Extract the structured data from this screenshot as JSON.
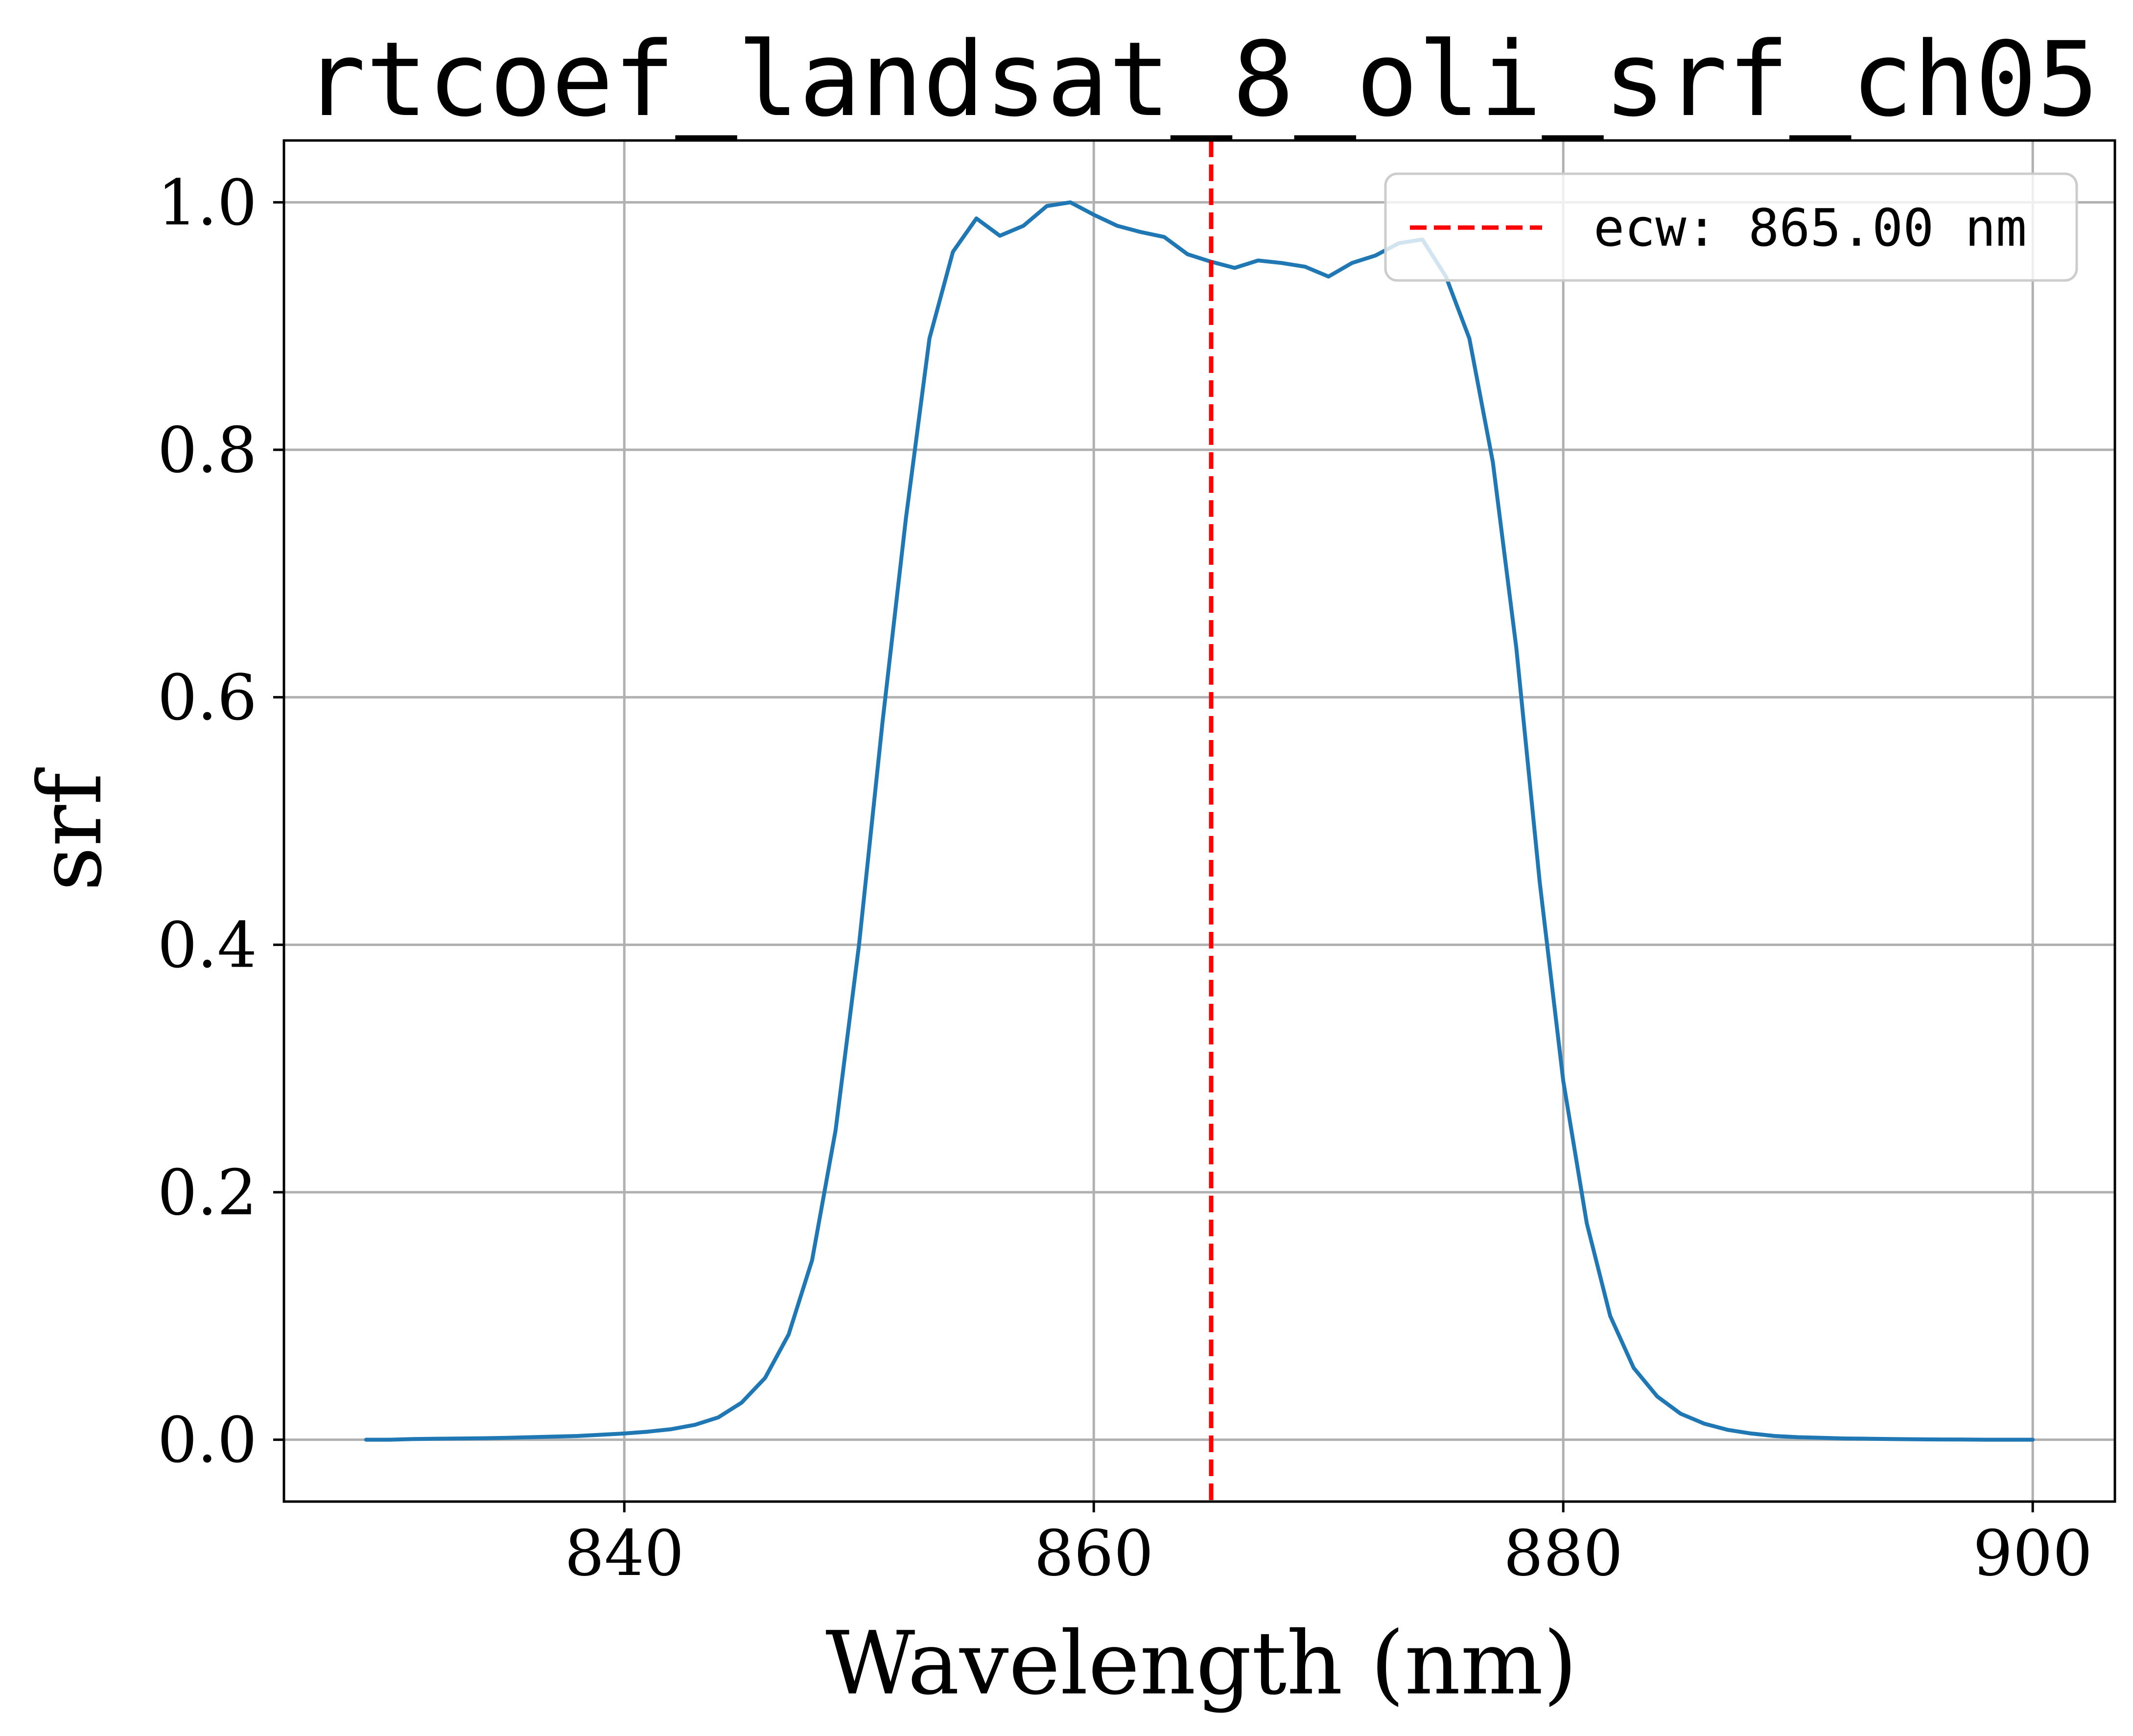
{
  "chart_data": {
    "type": "line",
    "title": "rtcoef_landsat_8_oli_srf_ch05",
    "xlabel": "Wavelength (nm)",
    "ylabel": "srf",
    "xlim": [
      825.5,
      903.5
    ],
    "ylim": [
      -0.05,
      1.05
    ],
    "x_ticks": [
      840,
      860,
      880,
      900
    ],
    "x_tick_labels": [
      "840",
      "860",
      "880",
      "900"
    ],
    "y_ticks": [
      0.0,
      0.2,
      0.4,
      0.6,
      0.8,
      1.0
    ],
    "y_tick_labels": [
      "0.0",
      "0.2",
      "0.4",
      "0.6",
      "0.8",
      "1.0"
    ],
    "grid": true,
    "legend_position": "top-right",
    "series": [
      {
        "name": "",
        "color": "#1f77b4",
        "style": "solid",
        "x": [
          829,
          830,
          831,
          832,
          833,
          834,
          835,
          836,
          837,
          838,
          839,
          840,
          841,
          842,
          843,
          844,
          845,
          846,
          847,
          848,
          849,
          850,
          851,
          852,
          853,
          854,
          855,
          856,
          857,
          858,
          859,
          860,
          861,
          862,
          863,
          864,
          865,
          866,
          867,
          868,
          869,
          870,
          871,
          872,
          873,
          874,
          875,
          876,
          877,
          878,
          879,
          880,
          881,
          882,
          883,
          884,
          885,
          886,
          887,
          888,
          889,
          890,
          891,
          892,
          893,
          894,
          895,
          896,
          897,
          898,
          899,
          900
        ],
        "y": [
          0.0,
          0.0,
          0.0005,
          0.0008,
          0.001,
          0.0012,
          0.0015,
          0.002,
          0.0025,
          0.003,
          0.004,
          0.005,
          0.0065,
          0.0085,
          0.012,
          0.018,
          0.03,
          0.05,
          0.085,
          0.145,
          0.25,
          0.4,
          0.58,
          0.745,
          0.89,
          0.96,
          0.987,
          0.973,
          0.981,
          0.997,
          1.0,
          0.99,
          0.981,
          0.976,
          0.972,
          0.958,
          0.952,
          0.947,
          0.953,
          0.951,
          0.948,
          0.94,
          0.951,
          0.957,
          0.967,
          0.97,
          0.94,
          0.89,
          0.79,
          0.64,
          0.45,
          0.29,
          0.175,
          0.1,
          0.058,
          0.035,
          0.021,
          0.013,
          0.008,
          0.005,
          0.003,
          0.002,
          0.0015,
          0.001,
          0.0008,
          0.0005,
          0.0003,
          0.0002,
          0.0001,
          0.0,
          0.0,
          0.0
        ]
      }
    ],
    "reference_lines": [
      {
        "orientation": "vertical",
        "x": 865.0,
        "color": "#ff0000",
        "style": "dashed",
        "label": "ecw: 865.00 nm"
      }
    ]
  }
}
